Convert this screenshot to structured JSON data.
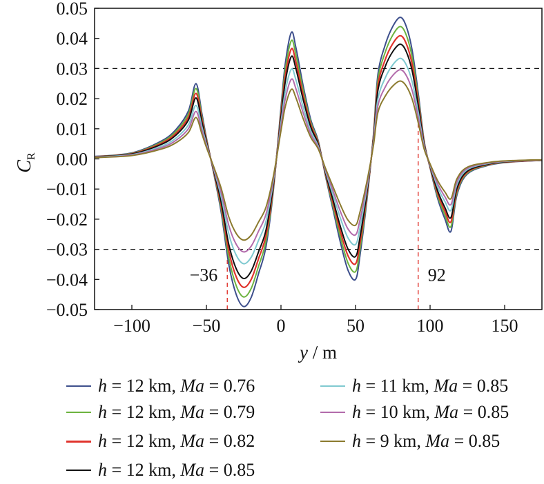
{
  "chart_data": {
    "type": "line",
    "title": "",
    "xlabel": "y / m",
    "ylabel": "C_R",
    "xlim": [
      -125,
      175
    ],
    "ylim": [
      -0.05,
      0.05
    ],
    "xticks": [
      -100,
      -50,
      0,
      50,
      100,
      150
    ],
    "xtick_labels": [
      "−100",
      "−50",
      "0",
      "50",
      "100",
      "150"
    ],
    "yticks": [
      0.05,
      0.04,
      0.03,
      0.02,
      0.01,
      0.0,
      -0.01,
      -0.02,
      -0.03,
      -0.04,
      -0.05
    ],
    "ytick_labels": [
      "0.05",
      "0.04",
      "0.03",
      "0.02",
      "0.01",
      "0.00",
      "−0.01",
      "−0.02",
      "−0.03",
      "−0.04",
      "−0.05"
    ],
    "reference_lines": {
      "horizontal": [
        0.03,
        -0.03
      ],
      "vertical": [
        {
          "x": -36,
          "label": "−36",
          "y_end": -0.03
        },
        {
          "x": 92,
          "label": "92",
          "y_end": 0.017
        }
      ]
    },
    "base_shape": {
      "x": [
        -125,
        -100,
        -80,
        -70,
        -62,
        -57,
        -53,
        -50,
        -45,
        -40,
        -35,
        -30,
        -25,
        -20,
        -15,
        -10,
        -5,
        0,
        3,
        7,
        10,
        15,
        20,
        25,
        30,
        35,
        40,
        45,
        50,
        53,
        58,
        62,
        65,
        70,
        75,
        80,
        84,
        88,
        92,
        96,
        100,
        105,
        110,
        114,
        118,
        125,
        140,
        155,
        175
      ],
      "y": [
        0.0008,
        0.002,
        0.006,
        0.01,
        0.016,
        0.025,
        0.015,
        0.007,
        -0.005,
        -0.018,
        -0.035,
        -0.045,
        -0.049,
        -0.046,
        -0.038,
        -0.029,
        -0.01,
        0.017,
        0.032,
        0.042,
        0.037,
        0.024,
        0.013,
        0.006,
        -0.006,
        -0.017,
        -0.028,
        -0.037,
        -0.04,
        -0.032,
        -0.012,
        0.008,
        0.028,
        0.038,
        0.044,
        0.047,
        0.044,
        0.036,
        0.022,
        0.006,
        -0.003,
        -0.013,
        -0.02,
        -0.024,
        -0.012,
        -0.005,
        -0.002,
        -0.001,
        -0.0005
      ]
    },
    "series": [
      {
        "name": "h = 12 km, Ma = 0.76",
        "color": "#3d4f8c",
        "scale": 1.0
      },
      {
        "name": "h = 12 km, Ma = 0.79",
        "color": "#6cb33f",
        "scale": 0.935
      },
      {
        "name": "h = 12 km, Ma = 0.82",
        "color": "#e0332c",
        "scale": 0.87
      },
      {
        "name": "h = 12 km, Ma = 0.85",
        "color": "#111111",
        "scale": 0.81
      },
      {
        "name": "h = 11 km, Ma = 0.85",
        "color": "#7fc9d0",
        "scale": 0.71
      },
      {
        "name": "h = 10 km, Ma = 0.85",
        "color": "#b26bab",
        "scale": 0.63
      },
      {
        "name": "h = 9 km, Ma = 0.85",
        "color": "#8b7a2e",
        "scale": 0.55
      }
    ]
  },
  "legend": {
    "items": [
      {
        "h": "h",
        "eq1": " = 12 km, ",
        "ma": "Ma",
        "eq2": " = 0.76"
      },
      {
        "h": "h",
        "eq1": " = 12 km, ",
        "ma": "Ma",
        "eq2": " = 0.79"
      },
      {
        "h": "h",
        "eq1": " = 12 km, ",
        "ma": "Ma",
        "eq2": " = 0.82"
      },
      {
        "h": "h",
        "eq1": " = 12 km, ",
        "ma": "Ma",
        "eq2": " = 0.85"
      },
      {
        "h": "h",
        "eq1": " = 11 km, ",
        "ma": "Ma",
        "eq2": " = 0.85"
      },
      {
        "h": "h",
        "eq1": " = 10 km, ",
        "ma": "Ma",
        "eq2": " = 0.85"
      },
      {
        "h": "h",
        "eq1": " = 9 km, ",
        "ma": "Ma",
        "eq2": " = 0.85"
      }
    ]
  },
  "axis_text": {
    "y_main": "C",
    "y_sub": "R",
    "x_var": "y",
    "x_rest": " / m"
  }
}
